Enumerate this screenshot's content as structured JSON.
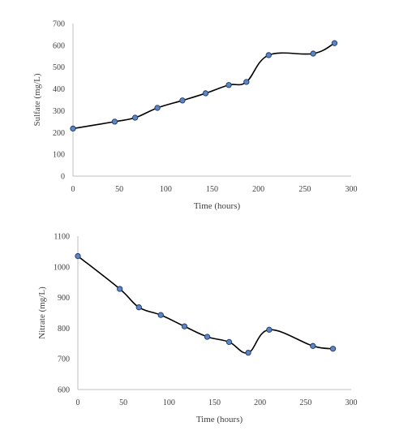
{
  "chart_data": [
    {
      "type": "line",
      "title": "",
      "xlabel": "Time (hours)",
      "ylabel": "Sulfate (mg/L)",
      "xlim": [
        0,
        300
      ],
      "ylim": [
        0,
        700
      ],
      "xticks": [
        0,
        50,
        100,
        150,
        200,
        250,
        300
      ],
      "yticks": [
        0,
        100,
        200,
        300,
        400,
        500,
        600,
        700
      ],
      "grid": false,
      "smooth": true,
      "series": [
        {
          "x": [
            0,
            45,
            67,
            91,
            118,
            143,
            168,
            187,
            211,
            259,
            282
          ],
          "y": [
            218,
            250,
            268,
            313,
            347,
            380,
            418,
            432,
            555,
            562,
            610
          ]
        }
      ]
    },
    {
      "type": "line",
      "title": "",
      "xlabel": "Time (hours)",
      "ylabel": "Nitrate (mg/L)",
      "xlim": [
        0,
        300
      ],
      "ylim": [
        600,
        1100
      ],
      "xticks": [
        0,
        50,
        100,
        150,
        200,
        250,
        300
      ],
      "yticks": [
        600,
        700,
        800,
        900,
        1000,
        1100
      ],
      "grid": false,
      "smooth": true,
      "series": [
        {
          "x": [
            0,
            46,
            67,
            91,
            117,
            142,
            166,
            187,
            210,
            258,
            280
          ],
          "y": [
            1035,
            928,
            868,
            843,
            806,
            772,
            755,
            720,
            795,
            742,
            733
          ]
        }
      ]
    }
  ]
}
